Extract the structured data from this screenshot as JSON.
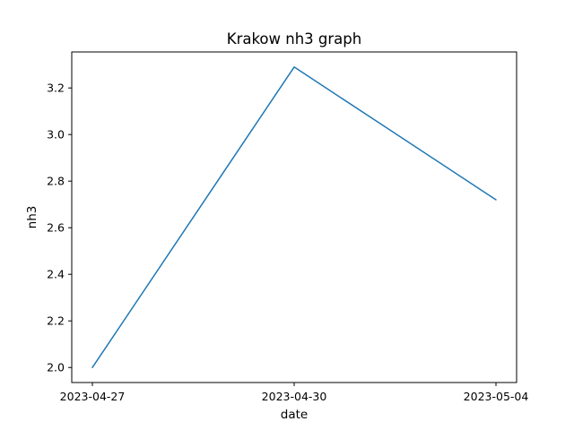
{
  "chart_data": {
    "type": "line",
    "title": "Krakow nh3 graph",
    "xlabel": "date",
    "ylabel": "nh3",
    "categories": [
      "2023-04-27",
      "2023-04-30",
      "2023-05-04"
    ],
    "series": [
      {
        "values": [
          2.0,
          3.29,
          2.72
        ],
        "color": "#1f77b4"
      }
    ],
    "ylim": [
      1.9355,
      3.3545
    ],
    "yticks": [
      2.0,
      2.2,
      2.4,
      2.6,
      2.8,
      3.0,
      3.2
    ],
    "ytick_labels": [
      "2.0",
      "2.2",
      "2.4",
      "2.6",
      "2.8",
      "3.0",
      "3.2"
    ],
    "grid": false,
    "legend": false
  }
}
